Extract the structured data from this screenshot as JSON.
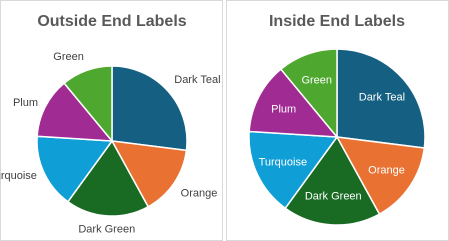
{
  "chart_data": [
    {
      "type": "pie",
      "title": "Outside End Labels",
      "label_position": "outside_end",
      "categories": [
        "Dark Teal",
        "Orange",
        "Dark Green",
        "Turquoise",
        "Plum",
        "Green"
      ],
      "values": [
        27,
        15,
        18,
        16,
        13,
        11
      ],
      "colors": [
        "#156082",
        "#e97132",
        "#196b24",
        "#0f9ed5",
        "#a02b93",
        "#4ea72e"
      ]
    },
    {
      "type": "pie",
      "title": "Inside End Labels",
      "label_position": "inside_end",
      "categories": [
        "Dark Teal",
        "Orange",
        "Dark Green",
        "Turquoise",
        "Plum",
        "Green"
      ],
      "values": [
        27,
        15,
        18,
        16,
        13,
        11
      ],
      "colors": [
        "#156082",
        "#e97132",
        "#196b24",
        "#0f9ed5",
        "#a02b93",
        "#4ea72e"
      ]
    }
  ]
}
